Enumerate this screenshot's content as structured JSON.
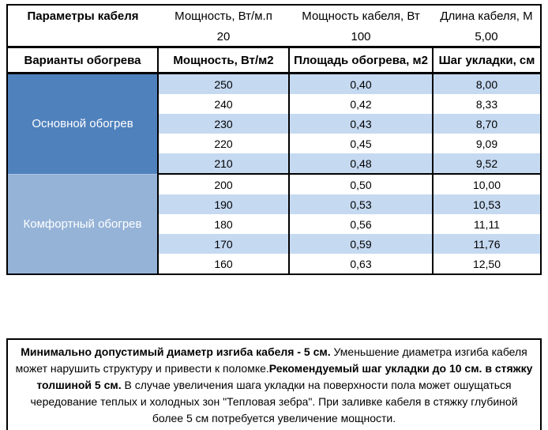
{
  "top_info": {
    "title": "Параметры кабеля",
    "cols": [
      {
        "label": "Мощность, Вт/м.п",
        "value": "20"
      },
      {
        "label": "Мощность кабеля, Вт",
        "value": "100"
      },
      {
        "label": "Длина кабеля, М",
        "value": "5,00"
      }
    ]
  },
  "table": {
    "headers": [
      "Варианты обогрева",
      "Мощность, Вт/м2",
      "Площадь обогрева, м2",
      "Шаг укладки, см"
    ],
    "sections": [
      {
        "name": "Основной обогрев",
        "rows": [
          [
            "250",
            "0,40",
            "8,00"
          ],
          [
            "240",
            "0,42",
            "8,33"
          ],
          [
            "230",
            "0,43",
            "8,70"
          ],
          [
            "220",
            "0,45",
            "9,09"
          ],
          [
            "210",
            "0,48",
            "9,52"
          ]
        ]
      },
      {
        "name": "Комфортный обогрев",
        "rows": [
          [
            "200",
            "0,50",
            "10,00"
          ],
          [
            "190",
            "0,53",
            "10,53"
          ],
          [
            "180",
            "0,56",
            "11,11"
          ],
          [
            "170",
            "0,59",
            "11,76"
          ],
          [
            "160",
            "0,63",
            "12,50"
          ]
        ]
      }
    ]
  },
  "note": {
    "segments": [
      {
        "text": "Минимально допустимый диаметр изгиба кабеля - 5 см.",
        "bold": true
      },
      {
        "text": "  Уменьшение диаметра изгиба кабеля может нарушить структуру и привести к поломке.",
        "bold": false
      },
      {
        "text": "Рекомендуемый шаг укладки до 10 см. в стяжку толшиной 5 см.",
        "bold": true
      },
      {
        "text": " В  случае увеличения шага укладки на поверхности пола может ошущаться чередование теплых и холодных зон \"Тепловая зебра\". При заливке кабеля в стяжку глубиной более 5 см потребуется увеличение мощности.",
        "bold": false
      }
    ]
  },
  "colors": {
    "section_main": "#4f81bd",
    "section_comfort": "#95b3d7",
    "row_stripe": "#c5d9f1",
    "border": "#000000"
  }
}
